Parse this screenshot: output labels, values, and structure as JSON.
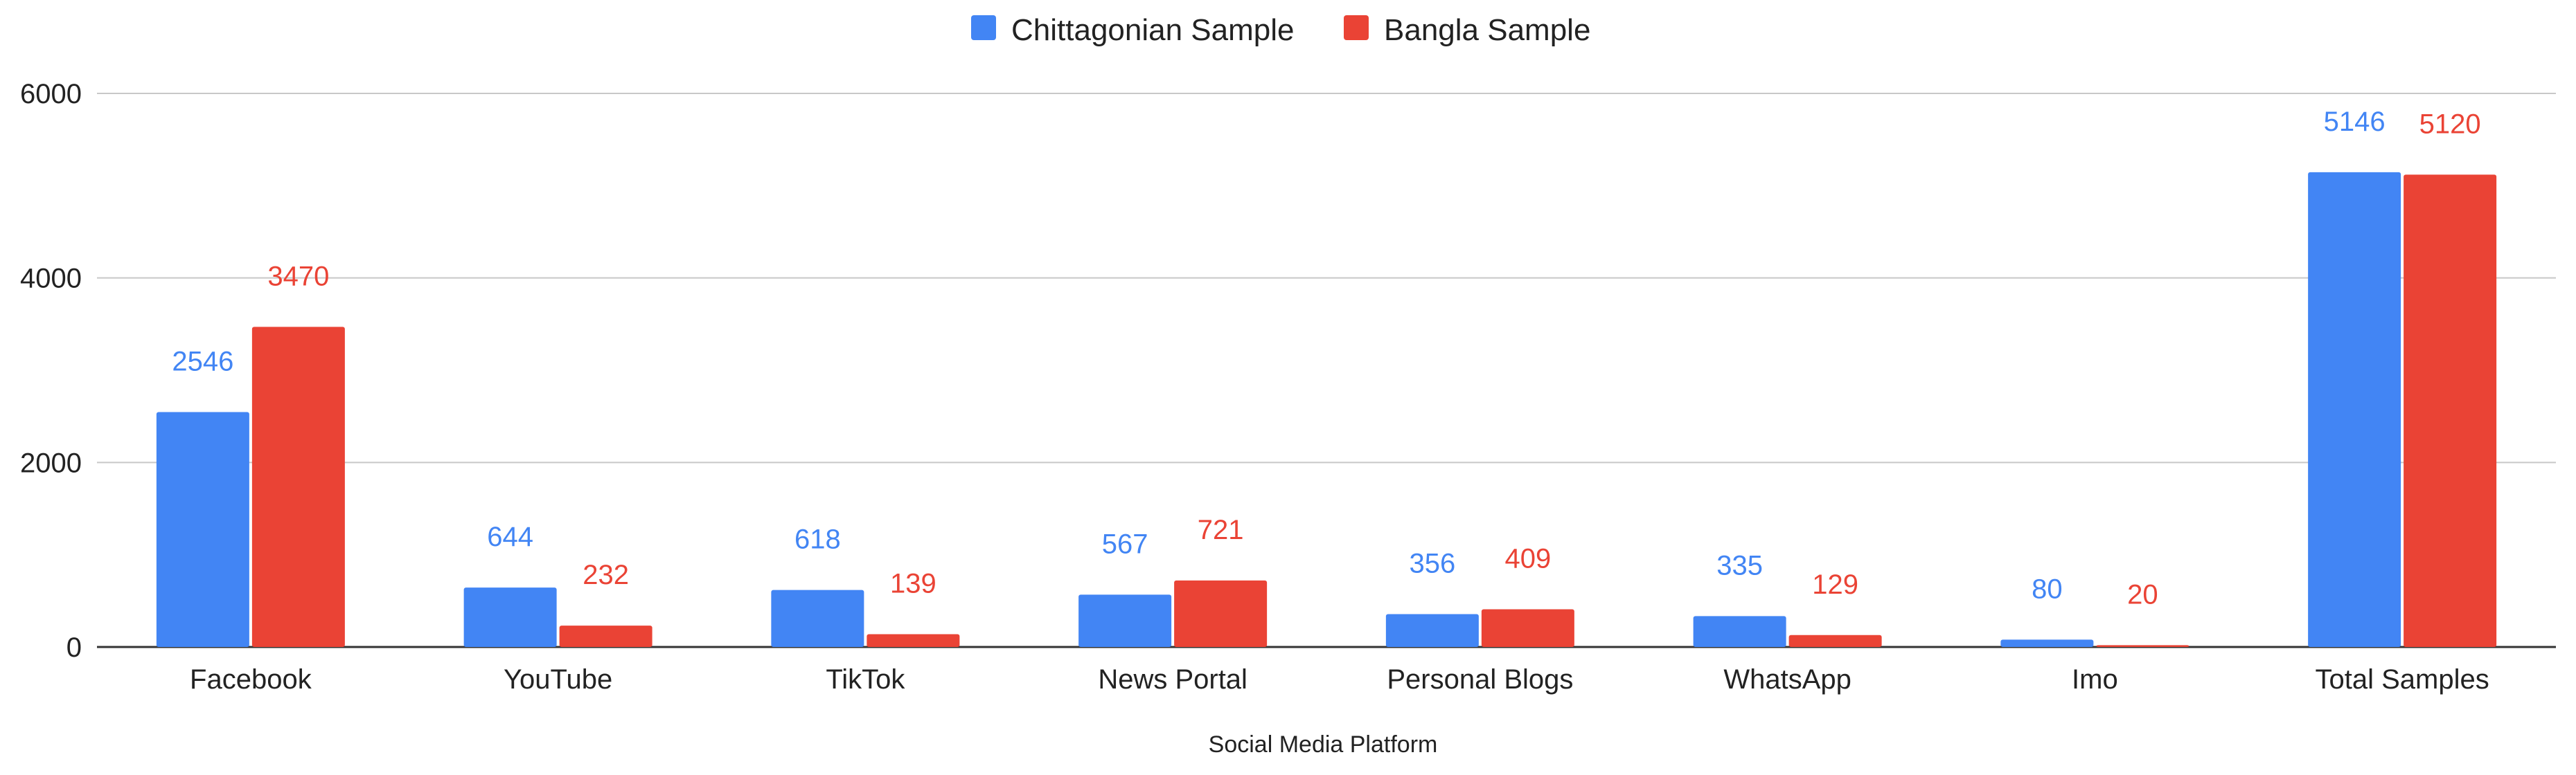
{
  "chart_data": {
    "type": "bar",
    "xlabel": "Social Media Platform",
    "ylabel": "",
    "ylim": [
      0,
      6000
    ],
    "yticks": [
      0,
      2000,
      4000,
      6000
    ],
    "grid": true,
    "legend_position": "top",
    "categories": [
      "Facebook",
      "YouTube",
      "TikTok",
      "News Portal",
      "Personal Blogs",
      "WhatsApp",
      "Imo",
      "Total Samples"
    ],
    "series": [
      {
        "name": "Chittagonian Sample",
        "color": "#4285F4",
        "values": [
          2546,
          644,
          618,
          567,
          356,
          335,
          80,
          5146
        ]
      },
      {
        "name": "Bangla Sample",
        "color": "#EA4335",
        "values": [
          3470,
          232,
          139,
          721,
          409,
          129,
          20,
          5120
        ]
      }
    ]
  }
}
